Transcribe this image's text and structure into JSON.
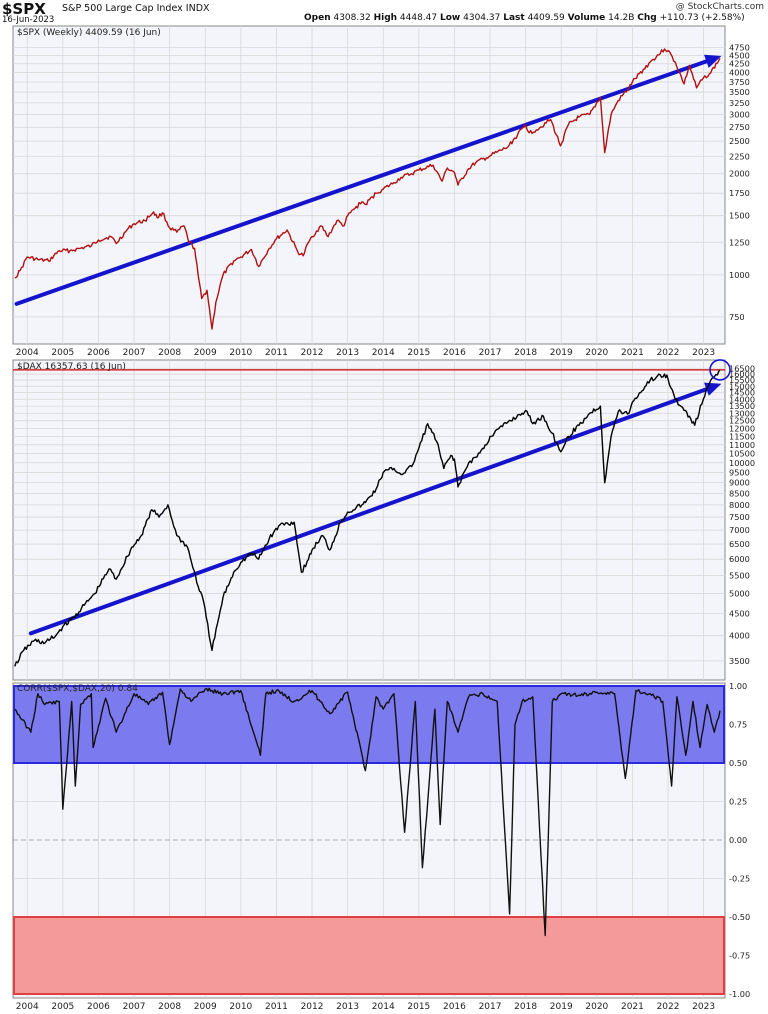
{
  "header": {
    "symbol": "$SPX",
    "name": "S&P 500 Large Cap Index",
    "exchange": "INDX",
    "date": "16-Jun-2023",
    "open_label": "Open",
    "open": "4308.32",
    "high_label": "High",
    "high": "4448.47",
    "low_label": "Low",
    "low": "4304.37",
    "last_label": "Last",
    "last": "4409.59",
    "volume_label": "Volume",
    "volume": "14.2B",
    "chg_label": "Chg",
    "chg": "+110.73 (+2.58%)",
    "brand": "@ StockCharts.com"
  },
  "colors": {
    "spx_line": "#b01010",
    "dax_line": "#000000",
    "trend_arrow": "#1414cc",
    "blue_band": "#7b7bef",
    "red_band": "#f59a9a",
    "dax_hline": "#cc0000",
    "grid": "#d8d8d8",
    "panel_bg": "#f4f5fb"
  },
  "chart_data": [
    {
      "type": "line",
      "label": "$SPX (Weekly) 4409.59 (16 Jun)",
      "log_scale": true,
      "ylim": [
        640,
        5000
      ],
      "xlim": [
        2003.6,
        2023.6
      ],
      "y_ticks": [
        750,
        1000,
        1250,
        1500,
        1750,
        2000,
        2250,
        2500,
        2750,
        3000,
        3250,
        3500,
        3750,
        4000,
        4250,
        4500,
        4750
      ],
      "x_ticks": [
        "2004",
        "2005",
        "2006",
        "2007",
        "2008",
        "2009",
        "2010",
        "2011",
        "2012",
        "2013",
        "2014",
        "2015",
        "2016",
        "2017",
        "2018",
        "2019",
        "2020",
        "2021",
        "2022",
        "2023"
      ],
      "series": [
        {
          "x": [
            2003.65,
            2003.8,
            2004.0,
            2004.3,
            2004.6,
            2004.9,
            2005.2,
            2005.5,
            2005.8,
            2006.0,
            2006.35,
            2006.5,
            2006.8,
            2007.0,
            2007.3,
            2007.55,
            2007.65,
            2007.8,
            2008.0,
            2008.2,
            2008.4,
            2008.55,
            2008.7,
            2008.8,
            2008.9,
            2009.05,
            2009.19,
            2009.3,
            2009.5,
            2009.8,
            2010.0,
            2010.3,
            2010.5,
            2010.8,
            2011.0,
            2011.3,
            2011.6,
            2011.75,
            2011.9,
            2012.0,
            2012.25,
            2012.45,
            2012.7,
            2012.9,
            2013.0,
            2013.4,
            2013.5,
            2013.8,
            2014.0,
            2014.3,
            2014.5,
            2014.8,
            2015.0,
            2015.4,
            2015.65,
            2015.8,
            2016.0,
            2016.1,
            2016.4,
            2016.6,
            2016.9,
            2017.0,
            2017.5,
            2018.0,
            2018.1,
            2018.3,
            2018.7,
            2018.98,
            2019.2,
            2019.5,
            2019.8,
            2020.1,
            2020.22,
            2020.4,
            2020.6,
            2020.9,
            2021.0,
            2021.5,
            2021.9,
            2022.0,
            2022.2,
            2022.45,
            2022.6,
            2022.8,
            2022.99,
            2023.2,
            2023.46
          ],
          "y": [
            980,
            1030,
            1130,
            1110,
            1100,
            1180,
            1180,
            1200,
            1220,
            1270,
            1300,
            1240,
            1360,
            1420,
            1450,
            1540,
            1480,
            1530,
            1380,
            1340,
            1400,
            1250,
            1200,
            1000,
            850,
            900,
            690,
            830,
            1000,
            1100,
            1130,
            1190,
            1060,
            1200,
            1280,
            1360,
            1170,
            1140,
            1250,
            1300,
            1400,
            1300,
            1450,
            1400,
            1500,
            1650,
            1620,
            1750,
            1800,
            1880,
            1950,
            2000,
            2050,
            2120,
            1900,
            2080,
            2020,
            1850,
            2070,
            2160,
            2230,
            2260,
            2400,
            2800,
            2650,
            2700,
            2900,
            2420,
            2800,
            2950,
            3000,
            3380,
            2310,
            3000,
            3300,
            3600,
            3750,
            4300,
            4700,
            4650,
            4300,
            3700,
            4200,
            3600,
            3850,
            4000,
            4410
          ]
        }
      ],
      "trend_arrow": {
        "from": [
          2003.7,
          820
        ],
        "to": [
          2023.5,
          4480
        ]
      }
    },
    {
      "type": "line",
      "label": "$DAX 16357.63 (16 Jun)",
      "log_scale": true,
      "ylim": [
        3300,
        16700
      ],
      "y_ticks": [
        3500,
        4000,
        4500,
        5000,
        5500,
        6000,
        6500,
        7000,
        7500,
        8000,
        8500,
        9000,
        9500,
        10000,
        10500,
        11000,
        11500,
        12000,
        12500,
        13000,
        13500,
        14000,
        14500,
        15000,
        15500,
        16000,
        16500
      ],
      "hline": 16357.63,
      "series": [
        {
          "x": [
            2003.65,
            2003.9,
            2004.2,
            2004.5,
            2004.8,
            2005.0,
            2005.3,
            2005.6,
            2005.9,
            2006.3,
            2006.5,
            2006.9,
            2007.2,
            2007.5,
            2007.7,
            2007.95,
            2008.2,
            2008.5,
            2008.8,
            2008.95,
            2009.19,
            2009.5,
            2009.8,
            2010.0,
            2010.3,
            2010.5,
            2010.8,
            2011.1,
            2011.5,
            2011.7,
            2011.9,
            2012.0,
            2012.3,
            2012.5,
            2012.8,
            2013.0,
            2013.4,
            2013.5,
            2013.8,
            2014.0,
            2014.3,
            2014.5,
            2014.8,
            2015.0,
            2015.25,
            2015.5,
            2015.7,
            2015.9,
            2016.0,
            2016.1,
            2016.4,
            2016.6,
            2016.9,
            2017.0,
            2017.5,
            2017.9,
            2018.0,
            2018.2,
            2018.5,
            2018.9,
            2018.99,
            2019.2,
            2019.5,
            2019.8,
            2020.1,
            2020.22,
            2020.4,
            2020.6,
            2020.9,
            2021.0,
            2021.5,
            2021.9,
            2022.0,
            2022.2,
            2022.45,
            2022.6,
            2022.75,
            2022.99,
            2023.2,
            2023.46
          ],
          "y": [
            3400,
            3700,
            3900,
            3850,
            4000,
            4200,
            4400,
            4700,
            5000,
            5700,
            5400,
            6300,
            6800,
            7800,
            7500,
            8000,
            6800,
            6400,
            5200,
            4800,
            3700,
            4900,
            5600,
            5900,
            6200,
            6000,
            6700,
            7200,
            7300,
            5600,
            6000,
            6300,
            6800,
            6300,
            7300,
            7700,
            8000,
            8100,
            8700,
            9500,
            9700,
            9400,
            9800,
            10800,
            12300,
            11200,
            9700,
            10400,
            10200,
            8800,
            10000,
            10300,
            11000,
            11500,
            12400,
            13000,
            13200,
            12300,
            12800,
            11000,
            10600,
            11500,
            12200,
            13000,
            13500,
            9000,
            11500,
            13100,
            13000,
            13800,
            15500,
            16000,
            15600,
            14000,
            13200,
            12800,
            12200,
            14000,
            15500,
            16357
          ]
        }
      ],
      "trend_arrow": {
        "from": [
          2004.1,
          4050
        ],
        "to": [
          2023.5,
          15200
        ]
      }
    },
    {
      "type": "line",
      "label": "CORR($SPX,$DAX,20) 0.84",
      "ylim": [
        -1.0,
        1.0
      ],
      "y_ticks": [
        1.0,
        0.75,
        0.5,
        0.25,
        0.0,
        -0.25,
        -0.5,
        -0.75,
        -1.0
      ],
      "bands": [
        {
          "from": 0.5,
          "to": 1.0,
          "color": "blue"
        },
        {
          "from": -1.0,
          "to": -0.5,
          "color": "red"
        }
      ],
      "series": [
        {
          "x": [
            2003.65,
            2004.1,
            2004.3,
            2004.5,
            2004.9,
            2005.0,
            2005.25,
            2005.35,
            2005.5,
            2005.8,
            2005.85,
            2006.2,
            2006.5,
            2007.0,
            2007.4,
            2007.8,
            2008.0,
            2008.3,
            2008.6,
            2009.0,
            2009.5,
            2010.0,
            2010.55,
            2010.7,
            2011.0,
            2011.5,
            2012.0,
            2012.5,
            2013.0,
            2013.5,
            2013.8,
            2014.0,
            2014.3,
            2014.6,
            2014.9,
            2015.1,
            2015.3,
            2015.45,
            2015.6,
            2015.8,
            2016.1,
            2016.4,
            2016.8,
            2017.2,
            2017.55,
            2017.7,
            2017.9,
            2018.2,
            2018.55,
            2018.75,
            2019.0,
            2019.5,
            2020.0,
            2020.5,
            2020.8,
            2021.1,
            2021.5,
            2021.85,
            2022.1,
            2022.25,
            2022.5,
            2022.7,
            2022.9,
            2023.1,
            2023.3,
            2023.46
          ],
          "y": [
            0.85,
            0.7,
            0.95,
            0.88,
            0.9,
            0.2,
            0.9,
            0.35,
            0.88,
            0.95,
            0.6,
            0.92,
            0.7,
            0.95,
            0.88,
            0.96,
            0.62,
            0.98,
            0.9,
            0.98,
            0.95,
            0.97,
            0.55,
            0.95,
            0.97,
            0.9,
            0.97,
            0.82,
            0.96,
            0.45,
            0.93,
            0.85,
            0.95,
            0.05,
            0.9,
            -0.18,
            0.4,
            0.85,
            0.1,
            0.9,
            0.7,
            0.93,
            0.95,
            0.9,
            -0.48,
            0.75,
            0.9,
            0.93,
            -0.62,
            0.9,
            0.95,
            0.94,
            0.96,
            0.95,
            0.4,
            0.97,
            0.95,
            0.9,
            0.35,
            0.93,
            0.55,
            0.9,
            0.6,
            0.88,
            0.7,
            0.84
          ]
        }
      ]
    }
  ]
}
